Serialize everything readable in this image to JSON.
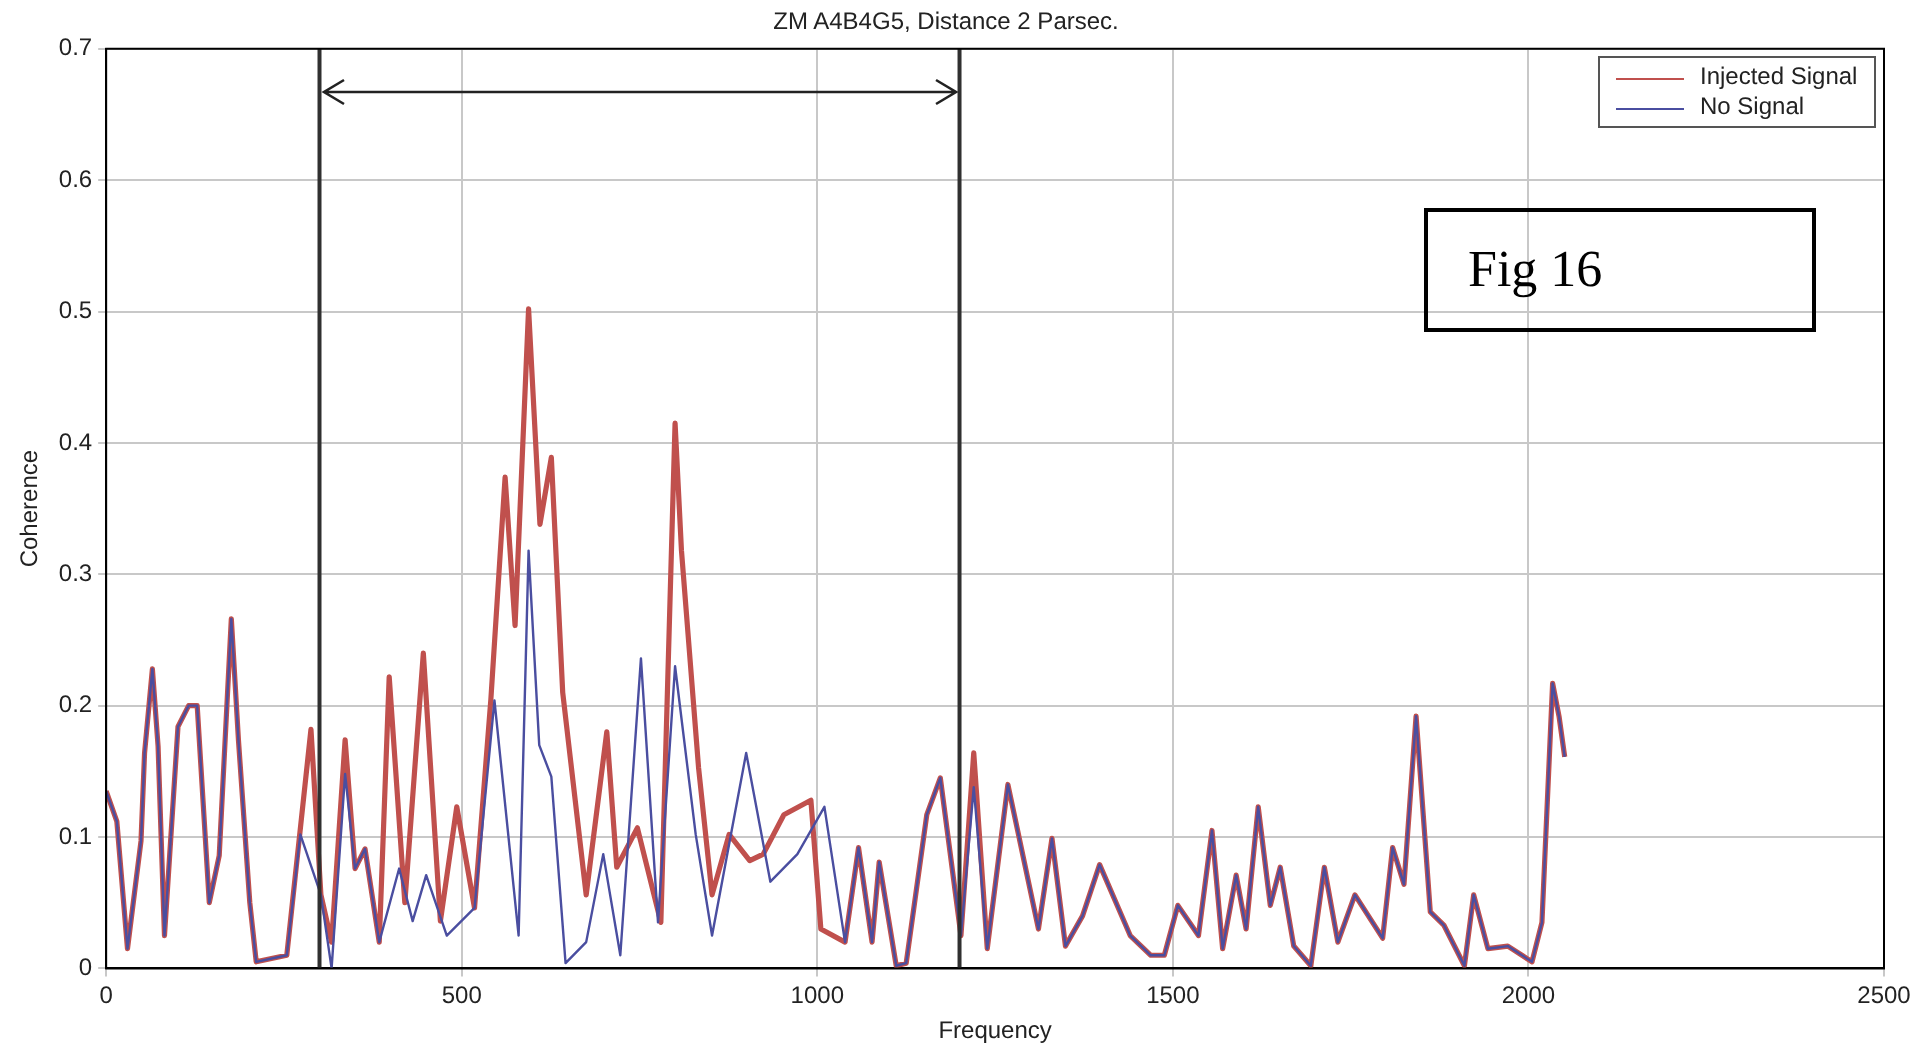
{
  "chart_data": {
    "type": "line",
    "title": "ZM A4B4G5, Distance 2 Parsec.",
    "xlabel": "Frequency",
    "ylabel": "Coherence",
    "xlim": [
      0,
      2500
    ],
    "xticks": [
      0,
      500,
      1000,
      1500,
      2000,
      2500
    ],
    "ylim": [
      0,
      0.7
    ],
    "yticks": [
      0,
      0.1,
      0.2,
      0.3,
      0.4,
      0.5,
      0.6,
      0.7
    ],
    "grid": true,
    "legend": "top right",
    "marker": "none",
    "line_style": "solid",
    "annotations": [
      "Fig 16"
    ],
    "ref_lines": [
      {
        "axis": "x",
        "value": 300,
        "color": "#303030"
      },
      {
        "axis": "x",
        "value": 1200,
        "color": "#303030"
      }
    ],
    "series": [
      {
        "name": "Injected Signal",
        "color": "#c0504d",
        "x": [
          0,
          15,
          30,
          49,
          54,
          65,
          73,
          82,
          101,
          116,
          128,
          145,
          159,
          176,
          186,
          202,
          211,
          254,
          288,
          302,
          317,
          336,
          350,
          364,
          384,
          398,
          420,
          446,
          470,
          493,
          518,
          541,
          561,
          575,
          594,
          610,
          626,
          642,
          675,
          704,
          718,
          747,
          780,
          800,
          809,
          833,
          852,
          876,
          905,
          924,
          953,
          991,
          1005,
          1039,
          1058,
          1077,
          1087,
          1111,
          1125,
          1154,
          1173,
          1202,
          1220,
          1239,
          1268,
          1311,
          1330,
          1349,
          1373,
          1397,
          1440,
          1469,
          1488,
          1507,
          1536,
          1555,
          1570,
          1589,
          1603,
          1620,
          1637,
          1651,
          1670,
          1694,
          1713,
          1732,
          1756,
          1795,
          1809,
          1825,
          1842,
          1862,
          1881,
          1910,
          1923,
          1943,
          1971,
          2005,
          2019,
          2034,
          2043,
          2051
        ],
        "values": [
          0.135,
          0.112,
          0.015,
          0.097,
          0.164,
          0.228,
          0.169,
          0.025,
          0.184,
          0.2,
          0.2,
          0.05,
          0.086,
          0.266,
          0.174,
          0.05,
          0.005,
          0.01,
          0.182,
          0.056,
          0.02,
          0.174,
          0.076,
          0.091,
          0.02,
          0.222,
          0.05,
          0.24,
          0.036,
          0.123,
          0.046,
          0.205,
          0.374,
          0.261,
          0.502,
          0.338,
          0.389,
          0.21,
          0.056,
          0.18,
          0.077,
          0.107,
          0.035,
          0.415,
          0.318,
          0.153,
          0.056,
          0.102,
          0.082,
          0.087,
          0.117,
          0.128,
          0.03,
          0.02,
          0.092,
          0.02,
          0.081,
          0.002,
          0.004,
          0.117,
          0.145,
          0.025,
          0.164,
          0.015,
          0.14,
          0.03,
          0.099,
          0.017,
          0.04,
          0.079,
          0.025,
          0.01,
          0.01,
          0.048,
          0.025,
          0.105,
          0.015,
          0.071,
          0.03,
          0.123,
          0.048,
          0.077,
          0.017,
          0.002,
          0.077,
          0.02,
          0.056,
          0.023,
          0.092,
          0.064,
          0.192,
          0.043,
          0.033,
          0.002,
          0.056,
          0.015,
          0.017,
          0.005,
          0.035,
          0.217,
          0.192,
          0.161
        ]
      },
      {
        "name": "No Signal",
        "color": "#4a4ea0",
        "x": [
          0,
          15,
          30,
          49,
          54,
          65,
          73,
          82,
          101,
          116,
          128,
          145,
          159,
          176,
          186,
          202,
          211,
          254,
          273,
          302,
          317,
          336,
          350,
          364,
          384,
          412,
          431,
          450,
          479,
          518,
          546,
          580,
          594,
          609,
          626,
          646,
          675,
          699,
          723,
          752,
          776,
          800,
          829,
          852,
          900,
          934,
          972,
          1010,
          1039,
          1058,
          1077,
          1087,
          1111,
          1125,
          1154,
          1173,
          1202,
          1220,
          1239,
          1268,
          1311,
          1330,
          1349,
          1373,
          1397,
          1440,
          1469,
          1488,
          1507,
          1536,
          1555,
          1570,
          1589,
          1603,
          1620,
          1637,
          1651,
          1670,
          1694,
          1713,
          1732,
          1756,
          1795,
          1809,
          1825,
          1842,
          1862,
          1881,
          1910,
          1923,
          1943,
          1971,
          2005,
          2019,
          2034,
          2043,
          2051
        ],
        "values": [
          0.135,
          0.112,
          0.015,
          0.097,
          0.164,
          0.228,
          0.169,
          0.025,
          0.184,
          0.2,
          0.2,
          0.05,
          0.086,
          0.266,
          0.174,
          0.05,
          0.005,
          0.01,
          0.102,
          0.056,
          0,
          0.148,
          0.076,
          0.091,
          0.02,
          0.076,
          0.036,
          0.071,
          0.025,
          0.046,
          0.204,
          0.025,
          0.318,
          0.17,
          0.146,
          0.004,
          0.02,
          0.087,
          0.01,
          0.236,
          0.035,
          0.23,
          0.102,
          0.025,
          0.164,
          0.066,
          0.087,
          0.123,
          0.02,
          0.092,
          0.02,
          0.081,
          0.002,
          0.004,
          0.117,
          0.145,
          0.025,
          0.138,
          0.015,
          0.14,
          0.03,
          0.099,
          0.017,
          0.04,
          0.079,
          0.025,
          0.01,
          0.01,
          0.048,
          0.025,
          0.105,
          0.015,
          0.071,
          0.03,
          0.123,
          0.048,
          0.077,
          0.017,
          0.002,
          0.077,
          0.02,
          0.056,
          0.023,
          0.092,
          0.064,
          0.192,
          0.043,
          0.033,
          0.002,
          0.056,
          0.015,
          0.017,
          0.005,
          0.035,
          0.217,
          0.192,
          0.161
        ]
      }
    ]
  }
}
